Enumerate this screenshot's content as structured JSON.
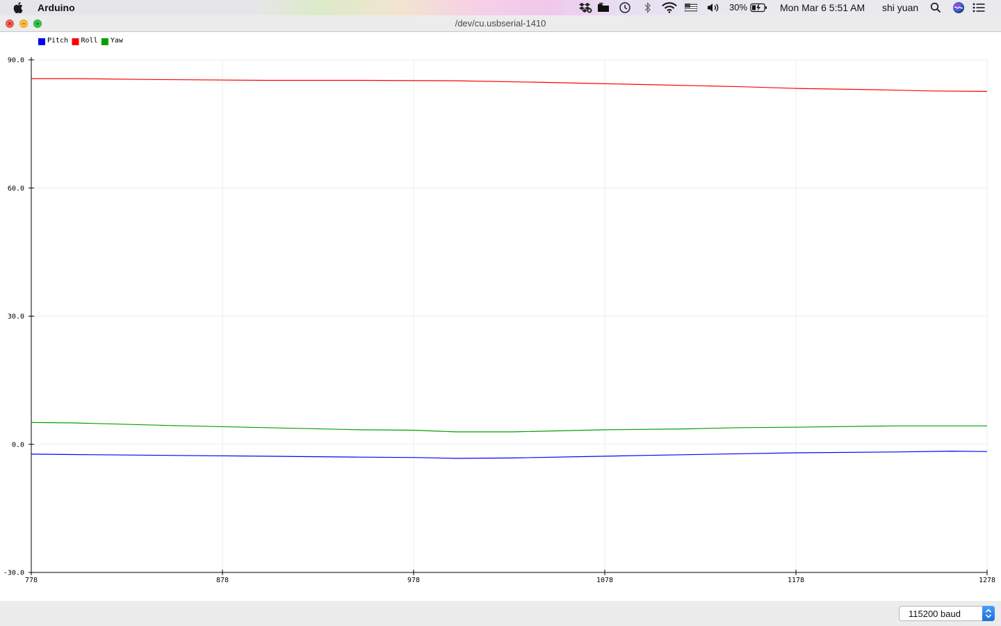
{
  "menubar": {
    "app_name": "Arduino",
    "battery": "30%",
    "clock": "Mon Mar 6  5:51 AM",
    "user": "shi yuan"
  },
  "window": {
    "title": "/dev/cu.usbserial-1410"
  },
  "toolbar": {
    "baud_value": "115200 baud"
  },
  "chart_data": {
    "type": "line",
    "legend_position": "top-left",
    "grid": true,
    "xlim": [
      778,
      1278
    ],
    "ylim": [
      -30,
      90
    ],
    "x_ticks": [
      "778",
      "878",
      "978",
      "1078",
      "1178",
      "1278"
    ],
    "y_ticks": [
      "90.0",
      "60.0",
      "30.0",
      "0.0",
      "-30.0"
    ],
    "series": [
      {
        "name": "Pitch",
        "color": "#0000ff",
        "points": [
          [
            778,
            -2.3
          ],
          [
            800,
            -2.4
          ],
          [
            850,
            -2.6
          ],
          [
            900,
            -2.8
          ],
          [
            950,
            -3.0
          ],
          [
            980,
            -3.1
          ],
          [
            1000,
            -3.3
          ],
          [
            1030,
            -3.2
          ],
          [
            1078,
            -2.8
          ],
          [
            1100,
            -2.6
          ],
          [
            1150,
            -2.2
          ],
          [
            1178,
            -2.0
          ],
          [
            1230,
            -1.8
          ],
          [
            1260,
            -1.6
          ],
          [
            1278,
            -1.7
          ]
        ]
      },
      {
        "name": "Roll",
        "color": "#ff0000",
        "points": [
          [
            778,
            85.6
          ],
          [
            800,
            85.6
          ],
          [
            840,
            85.4
          ],
          [
            900,
            85.2
          ],
          [
            950,
            85.2
          ],
          [
            1000,
            85.1
          ],
          [
            1050,
            84.7
          ],
          [
            1078,
            84.4
          ],
          [
            1100,
            84.2
          ],
          [
            1150,
            83.7
          ],
          [
            1178,
            83.3
          ],
          [
            1220,
            83.0
          ],
          [
            1250,
            82.7
          ],
          [
            1278,
            82.6
          ]
        ]
      },
      {
        "name": "Yaw",
        "color": "#00a000",
        "points": [
          [
            778,
            5.1
          ],
          [
            800,
            5.0
          ],
          [
            850,
            4.4
          ],
          [
            900,
            3.9
          ],
          [
            950,
            3.4
          ],
          [
            978,
            3.3
          ],
          [
            1000,
            2.9
          ],
          [
            1030,
            2.9
          ],
          [
            1078,
            3.4
          ],
          [
            1120,
            3.6
          ],
          [
            1150,
            3.9
          ],
          [
            1178,
            4.0
          ],
          [
            1230,
            4.3
          ],
          [
            1278,
            4.3
          ]
        ]
      }
    ]
  }
}
